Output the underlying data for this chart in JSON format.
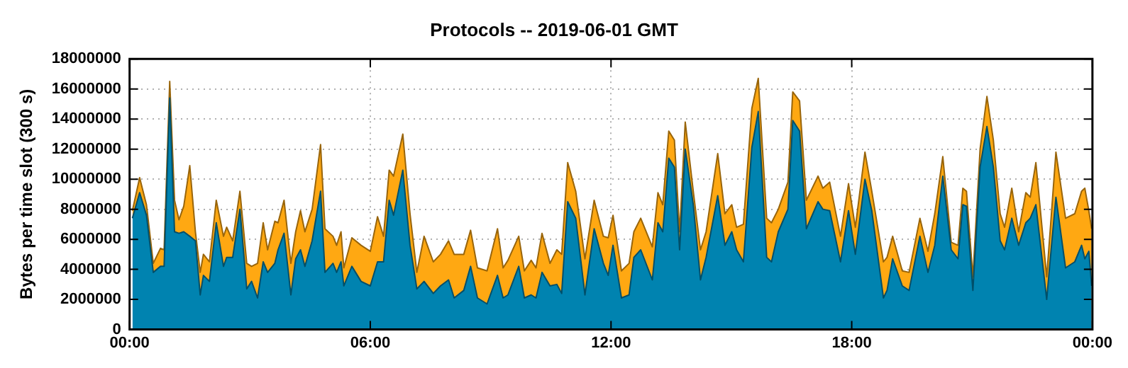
{
  "chart_data": {
    "type": "area",
    "stacked": true,
    "title": "Protocols -- 2019-06-01 GMT",
    "ylabel": "Bytes per time slot (300 s)",
    "x": [
      0.07,
      0.25,
      0.42,
      0.59,
      0.77,
      0.86,
      1.0,
      1.12,
      1.23,
      1.35,
      1.5,
      1.64,
      1.76,
      1.84,
      1.99,
      2.16,
      2.34,
      2.42,
      2.57,
      2.75,
      2.92,
      3.04,
      3.19,
      3.33,
      3.44,
      3.62,
      3.7,
      3.85,
      4.02,
      4.14,
      4.26,
      4.37,
      4.55,
      4.76,
      4.87,
      5.07,
      5.16,
      5.27,
      5.34,
      5.54,
      5.77,
      6.0,
      6.18,
      6.33,
      6.47,
      6.58,
      6.81,
      6.99,
      7.16,
      7.34,
      7.57,
      7.75,
      7.95,
      8.09,
      8.33,
      8.5,
      8.67,
      8.91,
      9.17,
      9.31,
      9.43,
      9.7,
      9.84,
      10.01,
      10.13,
      10.28,
      10.48,
      10.65,
      10.77,
      10.92,
      11.12,
      11.35,
      11.58,
      11.81,
      11.93,
      12.05,
      12.26,
      12.45,
      12.57,
      12.74,
      13.03,
      13.17,
      13.29,
      13.44,
      13.58,
      13.71,
      13.85,
      14.05,
      14.23,
      14.37,
      14.66,
      14.84,
      15.01,
      15.13,
      15.3,
      15.51,
      15.67,
      15.88,
      16.0,
      16.17,
      16.41,
      16.53,
      16.7,
      16.87,
      17.16,
      17.28,
      17.45,
      17.72,
      17.92,
      18.09,
      18.33,
      18.5,
      18.79,
      18.88,
      19.02,
      19.26,
      19.43,
      19.7,
      19.9,
      20.07,
      20.27,
      20.48,
      20.65,
      20.77,
      20.86,
      21.02,
      21.2,
      21.37,
      21.53,
      21.7,
      21.81,
      21.99,
      22.16,
      22.34,
      22.45,
      22.59,
      22.86,
      22.95,
      23.09,
      23.33,
      23.56,
      23.73,
      23.81,
      23.91,
      23.98
    ],
    "series": [
      {
        "color": "#0083b0",
        "values": [
          7400000,
          9100000,
          7600000,
          3800000,
          4200000,
          4200000,
          15400000,
          6500000,
          6400000,
          6500000,
          6200000,
          5900000,
          2300000,
          3600000,
          3200000,
          7100000,
          4200000,
          4800000,
          4800000,
          8000000,
          2700000,
          3200000,
          2100000,
          4500000,
          3800000,
          4400000,
          5300000,
          6400000,
          2300000,
          4700000,
          5300000,
          4200000,
          5900000,
          9200000,
          3800000,
          4400000,
          3800000,
          4500000,
          2900000,
          4200000,
          3200000,
          2900000,
          4500000,
          4500000,
          8600000,
          7600000,
          10600000,
          5600000,
          2700000,
          3200000,
          2400000,
          2900000,
          3300000,
          2100000,
          2600000,
          4200000,
          2100000,
          1700000,
          3600000,
          2100000,
          2300000,
          4200000,
          2100000,
          2300000,
          2100000,
          3800000,
          2900000,
          3000000,
          2400000,
          8500000,
          7400000,
          2300000,
          6700000,
          4400000,
          3600000,
          5600000,
          2100000,
          2300000,
          4800000,
          5300000,
          3300000,
          7100000,
          6500000,
          11400000,
          10800000,
          5300000,
          12000000,
          8300000,
          3300000,
          4800000,
          8900000,
          5600000,
          6500000,
          5300000,
          4500000,
          12100000,
          14500000,
          4800000,
          4500000,
          6500000,
          8000000,
          13900000,
          13200000,
          6700000,
          8500000,
          8000000,
          7900000,
          4500000,
          7900000,
          5000000,
          10000000,
          7900000,
          2100000,
          2600000,
          4700000,
          2900000,
          2600000,
          6200000,
          3800000,
          5600000,
          10200000,
          5300000,
          4700000,
          8300000,
          8200000,
          2600000,
          10800000,
          13500000,
          10800000,
          5900000,
          5300000,
          7400000,
          5600000,
          7100000,
          7400000,
          8300000,
          2000000,
          4700000,
          8800000,
          4100000,
          4500000,
          5600000,
          4700000,
          5200000,
          2900000
        ]
      },
      {
        "color": "#ffa812",
        "values": [
          500000,
          1000000,
          700000,
          600000,
          1200000,
          1100000,
          1100000,
          2100000,
          900000,
          1700000,
          4700000,
          600000,
          1500000,
          1400000,
          1300000,
          1500000,
          2000000,
          2000000,
          1100000,
          1200000,
          1700000,
          1000000,
          2300000,
          2600000,
          1500000,
          2800000,
          1800000,
          2200000,
          2100000,
          1800000,
          2600000,
          2300000,
          2100000,
          3100000,
          2900000,
          1800000,
          1800000,
          2000000,
          1200000,
          1900000,
          2400000,
          2300000,
          3000000,
          1700000,
          2000000,
          2600000,
          2400000,
          2100000,
          1100000,
          3000000,
          2100000,
          2100000,
          2600000,
          2900000,
          2400000,
          2400000,
          2000000,
          2200000,
          3100000,
          2000000,
          2300000,
          2000000,
          1800000,
          2300000,
          2000000,
          2600000,
          1500000,
          2300000,
          2600000,
          2600000,
          1800000,
          2400000,
          1900000,
          1800000,
          2500000,
          2000000,
          1800000,
          2100000,
          1700000,
          2100000,
          2200000,
          2000000,
          1800000,
          1800000,
          1800000,
          1200000,
          1800000,
          900000,
          2000000,
          1700000,
          2800000,
          2100000,
          1800000,
          1500000,
          2500000,
          2600000,
          2200000,
          2600000,
          2600000,
          1500000,
          1800000,
          1900000,
          2000000,
          1900000,
          1700000,
          1400000,
          1900000,
          1700000,
          1800000,
          1800000,
          1800000,
          1300000,
          2400000,
          2200000,
          1500000,
          1000000,
          1200000,
          1200000,
          1400000,
          2100000,
          1300000,
          500000,
          900000,
          1100000,
          1000000,
          900000,
          1200000,
          2000000,
          1800000,
          1800000,
          1500000,
          2000000,
          900000,
          2000000,
          1400000,
          2800000,
          1500000,
          2000000,
          3000000,
          3300000,
          3200000,
          3600000,
          4700000,
          2700000,
          3800000
        ]
      }
    ],
    "xlim": [
      0,
      24
    ],
    "xticks": [
      {
        "value": 0,
        "label": "00:00"
      },
      {
        "value": 6,
        "label": "06:00"
      },
      {
        "value": 12,
        "label": "12:00"
      },
      {
        "value": 18,
        "label": "18:00"
      },
      {
        "value": 24,
        "label": "00:00"
      }
    ],
    "ylim": [
      0,
      18000000
    ],
    "yticks": [
      0,
      2000000,
      4000000,
      6000000,
      8000000,
      10000000,
      12000000,
      14000000,
      16000000,
      18000000
    ],
    "grid": true
  }
}
